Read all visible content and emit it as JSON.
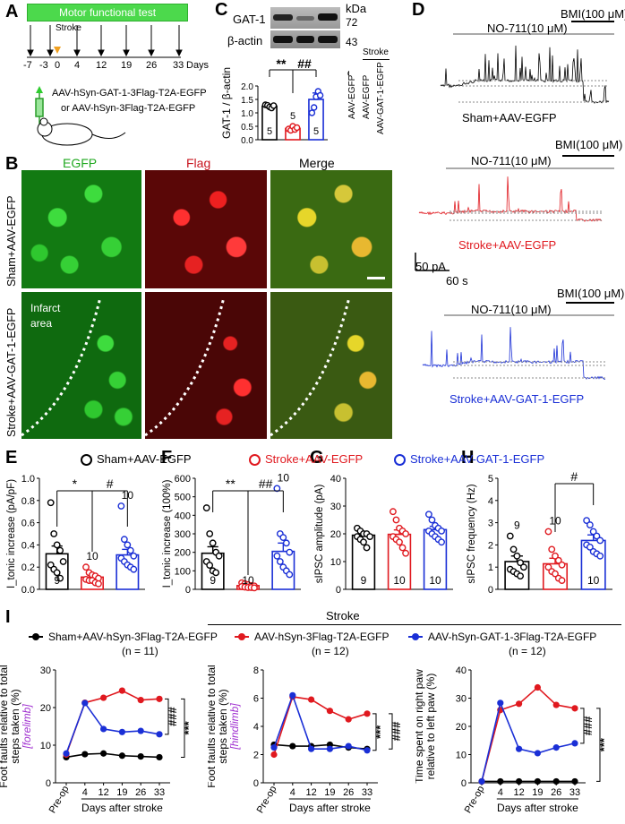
{
  "panels": {
    "A": "A",
    "B": "B",
    "C": "C",
    "D": "D",
    "E": "E",
    "F": "F",
    "G": "G",
    "H": "H",
    "I": "I"
  },
  "panelA": {
    "banner": "Motor functional test",
    "stroke": "Stroke",
    "days": [
      "-7",
      "-3",
      "0",
      "4",
      "12",
      "19",
      "26",
      "33"
    ],
    "days_unit": "Days",
    "virus1": "AAV-hSyn-GAT-1-3Flag-T2A-EGFP",
    "virus2": "or AAV-hSyn-3Flag-T2A-EGFP"
  },
  "panelB": {
    "col_labels": [
      "EGFP",
      "Flag",
      "Merge"
    ],
    "row_labels": [
      "Sham+AAV-EGFP",
      "Stroke+AAV-GAT-1-EGFP"
    ],
    "infarct": "Infarct\narea",
    "colors": {
      "green": "#1fa81f",
      "red": "#c8141e"
    }
  },
  "panelC": {
    "blot_labels": [
      "GAT-1",
      "β-actin"
    ],
    "kda_label": "kDa",
    "kda": [
      "72",
      "43"
    ],
    "ylabel": "GAT-1 / β-actin",
    "sig1": "**",
    "sig2": "##",
    "legend_title": "Stroke",
    "legend": [
      "AAV-EGFP",
      "AAV-EGFP",
      "AAV-GAT-1-EGFP"
    ],
    "n": [
      "5",
      "5",
      "5"
    ]
  },
  "panelD": {
    "traces": [
      {
        "name": "Sham+AAV-EGFP",
        "color": "#000000",
        "nmda": "NO-711(10 μM)",
        "bmi": "BMI(100 μM)"
      },
      {
        "name": "Stroke+AAV-EGFP",
        "color": "#e0191f",
        "nmda": "NO-711(10 μM)",
        "bmi": "BMI(100 μM)"
      },
      {
        "name": "Stroke+AAV-GAT-1-EGFP",
        "color": "#1a2fd6",
        "nmda": "NO-711(10 μM)",
        "bmi": "BMI(100 μM)"
      }
    ],
    "scale_pa": "50 pA",
    "scale_s": "60 s"
  },
  "legendEH": {
    "items": [
      {
        "name": "Sham+AAV-EGFP",
        "color": "#000000"
      },
      {
        "name": "Stroke+AAV-EGFP",
        "color": "#e0191f"
      },
      {
        "name": "Stroke+AAV-GAT-1-EGFP",
        "color": "#1a2fd6"
      }
    ]
  },
  "chart_data": [
    {
      "type": "bar",
      "id": "C",
      "categories": [
        "Sham+AAV-EGFP",
        "Stroke+AAV-EGFP",
        "Stroke+AAV-GAT-1-EGFP"
      ],
      "values": [
        1.25,
        0.42,
        1.5
      ],
      "sem": [
        0.06,
        0.06,
        0.24
      ],
      "ylabel": "GAT-1 / β-actin",
      "ylim": [
        0,
        2.0
      ],
      "yticks": [
        "0.0",
        "0.5",
        "1.0",
        "1.5",
        "2.0"
      ],
      "n": [
        "5",
        "5",
        "5"
      ],
      "points": [
        [
          1.3,
          1.28,
          1.22,
          1.18,
          1.27
        ],
        [
          0.4,
          0.35,
          0.5,
          0.38,
          0.45
        ],
        [
          1.0,
          1.2,
          1.6,
          1.8,
          1.65
        ]
      ]
    },
    {
      "type": "bar",
      "id": "E",
      "categories": [
        "Sham+AAV-EGFP",
        "Stroke+AAV-EGFP",
        "Stroke+AAV-GAT-1-EGFP"
      ],
      "values": [
        0.32,
        0.11,
        0.31
      ],
      "sem": [
        0.07,
        0.02,
        0.05
      ],
      "ylabel": "I_tonic increase (pA/pF)",
      "ylim": [
        0,
        1.0
      ],
      "yticks": [
        "0.0",
        "0.2",
        "0.4",
        "0.6",
        "0.8",
        "1.0"
      ],
      "n": [
        "9",
        "10",
        "10"
      ],
      "sig1": "*",
      "sig2": "#",
      "points": [
        [
          0.78,
          0.5,
          0.4,
          0.35,
          0.25,
          0.22,
          0.18,
          0.15,
          0.1
        ],
        [
          0.2,
          0.15,
          0.13,
          0.12,
          0.1,
          0.09,
          0.08,
          0.08,
          0.06,
          0.05
        ],
        [
          0.75,
          0.45,
          0.4,
          0.35,
          0.3,
          0.28,
          0.25,
          0.22,
          0.2,
          0.18
        ]
      ]
    },
    {
      "type": "bar",
      "id": "F",
      "categories": [
        "Sham+AAV-EGFP",
        "Stroke+AAV-EGFP",
        "Stroke+AAV-GAT-1-EGFP"
      ],
      "values": [
        195,
        20,
        205
      ],
      "sem": [
        35,
        5,
        45
      ],
      "ylabel": "I_tonic increase (100%)",
      "ylim": [
        0,
        600
      ],
      "yticks": [
        "0",
        "100",
        "200",
        "300",
        "400",
        "500",
        "600"
      ],
      "n": [
        "9",
        "10",
        "10"
      ],
      "sig1": "**",
      "sig2": "##",
      "points": [
        [
          440,
          300,
          250,
          200,
          180,
          150,
          130,
          100,
          90
        ],
        [
          35,
          30,
          25,
          20,
          18,
          15,
          12,
          10,
          10,
          8
        ],
        [
          545,
          300,
          280,
          250,
          200,
          180,
          150,
          120,
          100,
          80
        ]
      ]
    },
    {
      "type": "bar",
      "id": "G",
      "categories": [
        "Sham+AAV-EGFP",
        "Stroke+AAV-EGFP",
        "Stroke+AAV-GAT-1-EGFP"
      ],
      "values": [
        19.5,
        19.8,
        21.5
      ],
      "sem": [
        1.0,
        1.6,
        1.2
      ],
      "ylabel": "sIPSC amplitude (pA)",
      "ylim": [
        0,
        40
      ],
      "yticks": [
        "0",
        "10",
        "20",
        "30",
        "40"
      ],
      "n": [
        "9",
        "10",
        "10"
      ],
      "points": [
        [
          22,
          21,
          20,
          20,
          19,
          19,
          18,
          17,
          15
        ],
        [
          28,
          25,
          22,
          21,
          20,
          19,
          18,
          17,
          15,
          13
        ],
        [
          27,
          25,
          23,
          22,
          21,
          21,
          20,
          19,
          18,
          17
        ]
      ]
    },
    {
      "type": "bar",
      "id": "H",
      "categories": [
        "Sham+AAV-EGFP",
        "Stroke+AAV-EGFP",
        "Stroke+AAV-GAT-1-EGFP"
      ],
      "values": [
        1.25,
        1.15,
        2.2
      ],
      "sem": [
        0.25,
        0.25,
        0.25
      ],
      "ylabel": "sIPSC frequency (Hz)",
      "ylim": [
        0,
        5
      ],
      "yticks": [
        "0",
        "1",
        "2",
        "3",
        "4",
        "5"
      ],
      "n": [
        "9",
        "10",
        "10"
      ],
      "sig": "#",
      "points": [
        [
          2.4,
          1.8,
          1.5,
          1.2,
          1.0,
          0.9,
          0.8,
          0.7,
          0.6
        ],
        [
          2.6,
          1.8,
          1.5,
          1.3,
          1.1,
          1.0,
          0.8,
          0.7,
          0.5,
          0.4
        ],
        [
          3.1,
          2.9,
          2.6,
          2.4,
          2.2,
          2.0,
          1.9,
          1.7,
          1.6,
          1.5
        ]
      ]
    },
    {
      "type": "line",
      "id": "I1",
      "x": [
        "Pre-op",
        "4",
        "12",
        "19",
        "26",
        "33"
      ],
      "xlabel": "Days after stroke",
      "ylabel": "Foot faults relative to total steps taken (%) [forelimb]",
      "ylim": [
        0,
        30
      ],
      "yticks": [
        "0",
        "10",
        "20",
        "30"
      ],
      "series": [
        {
          "name": "Sham+AAV-hSyn-3Flag-T2A-EGFP",
          "values": [
            6.8,
            7.6,
            7.8,
            7.2,
            7.0,
            6.8
          ]
        },
        {
          "name": "AAV-hSyn-3Flag-T2A-EGFP",
          "values": [
            7.5,
            21.3,
            22.6,
            24.5,
            22.0,
            22.3
          ]
        },
        {
          "name": "AAV-hSyn-GAT-1-3Flag-T2A-EGFP",
          "values": [
            7.8,
            21.2,
            14.3,
            13.5,
            13.8,
            12.9
          ]
        }
      ],
      "sig1": "###",
      "sig2": "***"
    },
    {
      "type": "line",
      "id": "I2",
      "x": [
        "Pre-op",
        "4",
        "12",
        "19",
        "26",
        "33"
      ],
      "xlabel": "Days after stroke",
      "ylabel": "Foot faults relative to total steps taken (%) [hindlimb]",
      "ylim": [
        0,
        8
      ],
      "yticks": [
        "0",
        "2",
        "4",
        "6",
        "8"
      ],
      "series": [
        {
          "name": "Sham+AAV-hSyn-3Flag-T2A-EGFP",
          "values": [
            2.7,
            2.6,
            2.6,
            2.7,
            2.5,
            2.4
          ]
        },
        {
          "name": "AAV-hSyn-3Flag-T2A-EGFP",
          "values": [
            2.0,
            6.1,
            5.9,
            5.1,
            4.5,
            4.9
          ]
        },
        {
          "name": "AAV-hSyn-GAT-1-3Flag-T2A-EGFP",
          "values": [
            2.5,
            6.2,
            2.4,
            2.4,
            2.6,
            2.3
          ]
        }
      ],
      "sig1": "***",
      "sig2": "###"
    },
    {
      "type": "line",
      "id": "I3",
      "x": [
        "Pre-op",
        "4",
        "12",
        "19",
        "26",
        "33"
      ],
      "xlabel": "Days after stroke",
      "ylabel": "Time spent on right paw relative to left paw (%)",
      "ylim": [
        0,
        40
      ],
      "yticks": [
        "0",
        "10",
        "20",
        "30",
        "40"
      ],
      "series": [
        {
          "name": "Sham+AAV-hSyn-3Flag-T2A-EGFP",
          "values": [
            0.5,
            0.5,
            0.5,
            0.5,
            0.5,
            0.5
          ]
        },
        {
          "name": "AAV-hSyn-3Flag-T2A-EGFP",
          "values": [
            0.5,
            25.8,
            28.0,
            33.8,
            27.6,
            26.4
          ]
        },
        {
          "name": "AAV-hSyn-GAT-1-3Flag-T2A-EGFP",
          "values": [
            0.5,
            28.3,
            12.0,
            10.5,
            12.5,
            14.0
          ]
        }
      ],
      "sig1": "###",
      "sig2": "***"
    }
  ],
  "panelI": {
    "stroke_label": "Stroke",
    "legend": [
      {
        "name": "Sham+AAV-hSyn-3Flag-T2A-EGFP",
        "n": "(n = 11)",
        "color": "#000000"
      },
      {
        "name": "AAV-hSyn-3Flag-T2A-EGFP",
        "n": "(n = 12)",
        "color": "#e0191f"
      },
      {
        "name": "AAV-hSyn-GAT-1-3Flag-T2A-EGFP",
        "n": "(n = 12)",
        "color": "#1a2fd6"
      }
    ],
    "ylabels": [
      [
        "Foot faults relative to total",
        "steps taken (%)",
        "[forelimb]"
      ],
      [
        "Foot faults relative to total",
        "steps taken (%)",
        "[hindlimb]"
      ],
      [
        "Time spent on right paw",
        "relative to left paw (%)",
        ""
      ]
    ],
    "xlabel": "Days after stroke"
  }
}
